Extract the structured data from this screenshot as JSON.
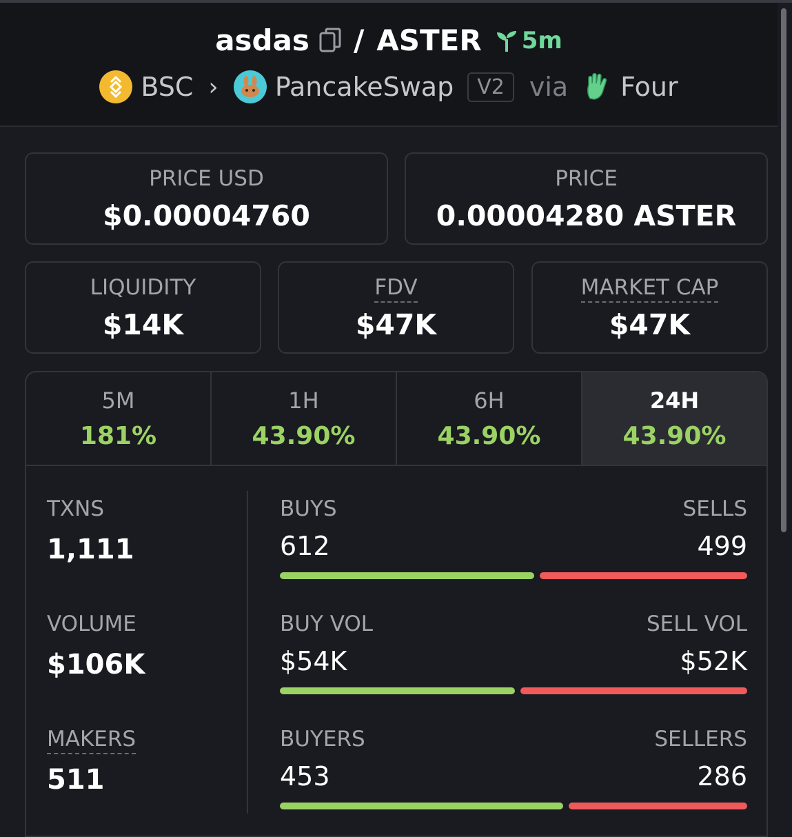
{
  "header": {
    "token": "asdas",
    "slash": "/",
    "quote": "ASTER",
    "age": "5m",
    "chain": "BSC",
    "dex": "PancakeSwap",
    "version": "V2",
    "via": "via",
    "launchpad": "Four"
  },
  "cards": {
    "price_usd": {
      "label": "PRICE USD",
      "value": "$0.00004760"
    },
    "price": {
      "label": "PRICE",
      "value": "0.00004280 ASTER"
    },
    "liquidity": {
      "label": "LIQUIDITY",
      "value": "$14K"
    },
    "fdv": {
      "label": "FDV",
      "value": "$47K"
    },
    "market_cap": {
      "label": "MARKET CAP",
      "value": "$47K"
    }
  },
  "tabs": [
    {
      "label": "5M",
      "value": "181%"
    },
    {
      "label": "1H",
      "value": "43.90%"
    },
    {
      "label": "6H",
      "value": "43.90%"
    },
    {
      "label": "24H",
      "value": "43.90%"
    }
  ],
  "active_tab": "24H",
  "stats": {
    "txns": {
      "label": "TXNS",
      "value": "1,111"
    },
    "volume": {
      "label": "VOLUME",
      "value": "$106K"
    },
    "makers": {
      "label": "MAKERS",
      "value": "511"
    },
    "buys_sells": {
      "left_label": "BUYS",
      "right_label": "SELLS",
      "left_value": "612",
      "right_value": "499",
      "buy_fraction": 0.551
    },
    "vol": {
      "left_label": "BUY VOL",
      "right_label": "SELL VOL",
      "left_value": "$54K",
      "right_value": "$52K",
      "buy_fraction": 0.509
    },
    "buyers_sellers": {
      "left_label": "BUYERS",
      "right_label": "SELLERS",
      "left_value": "453",
      "right_value": "286",
      "buy_fraction": 0.613
    }
  },
  "colors": {
    "positive": "#9bd264",
    "negative": "#f05a5a",
    "age": "#6fd89b"
  }
}
